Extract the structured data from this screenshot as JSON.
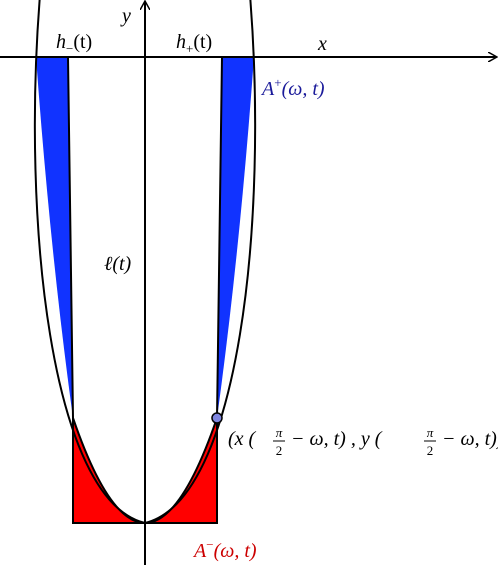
{
  "labels": {
    "y_axis": "y",
    "x_axis": "x",
    "h_minus": {
      "base": "h",
      "sub": "−",
      "arg": "(t)"
    },
    "h_plus": {
      "base": "h",
      "sub": "+",
      "arg": "(t)"
    },
    "a_plus": {
      "base": "A",
      "sup": "+",
      "arg": "(ω, t)"
    },
    "ell": "ℓ(t)",
    "point": {
      "open": "(x (",
      "num1": "π",
      "den1": "2",
      "mid": "− ω, t) , y (",
      "num2": "π",
      "den2": "2",
      "close": "− ω, t))"
    },
    "a_minus": {
      "base": "A",
      "sup": "−",
      "arg": "(ω, t)"
    }
  }
}
